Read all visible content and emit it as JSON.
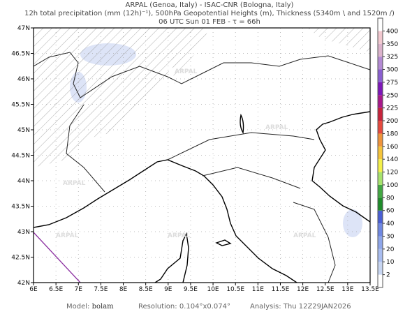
{
  "header": {
    "line1": "ARPAL (Genoa, Italy)  -  ISAC-CNR (Bologna, Italy)",
    "line2": "12h total precipitation (mm (12h)⁻¹), 500hPa Geopotential Heights (m), Thickness (5340m \\ and 1520m /)",
    "line3": "06 UTC Sun 01 FEB  -  τ = 66h"
  },
  "map": {
    "lon_labels": [
      "6E",
      "6.5E",
      "7E",
      "7.5E",
      "8E",
      "8.5E",
      "9E",
      "9.5E",
      "10E",
      "10.5E",
      "11E",
      "11.5E",
      "12E",
      "12.5E",
      "13E",
      "13.5E"
    ],
    "lat_labels": [
      "42N",
      "42.5N",
      "43N",
      "43.5N",
      "44N",
      "44.5N",
      "45N",
      "45.5N",
      "46N",
      "46.5N",
      "47N"
    ],
    "watermark": "ARPAL",
    "colors": {
      "coast": "#000000",
      "hatch": "#888888",
      "precip_light": "#dde4f7",
      "thickness_line": "#8b2fa0"
    }
  },
  "colorbar": {
    "levels": [
      "2",
      "10",
      "20",
      "30",
      "40",
      "60",
      "80",
      "100",
      "120",
      "140",
      "160",
      "180",
      "200",
      "225",
      "250",
      "275",
      "300",
      "325",
      "350",
      "400"
    ],
    "colors": [
      "#c8d6f2",
      "#a9bdf0",
      "#8ea6ea",
      "#6f88e2",
      "#4a5fd4",
      "#1f8c2a",
      "#43a843",
      "#a7e36d",
      "#f4f04a",
      "#f5c43b",
      "#ef943c",
      "#e64a3e",
      "#c7243c",
      "#a8198a",
      "#7d17b8",
      "#8a5fd0",
      "#b48ad4",
      "#dcb3cc",
      "#f2c8cf",
      "#ffffff"
    ]
  },
  "footer": {
    "model_label": "Model:",
    "model": "bolam",
    "resolution_label": "Resolution:",
    "resolution": "0.104°x0.074°",
    "analysis_label": "Analysis:",
    "analysis": "Thu  12Z29JAN2026"
  }
}
